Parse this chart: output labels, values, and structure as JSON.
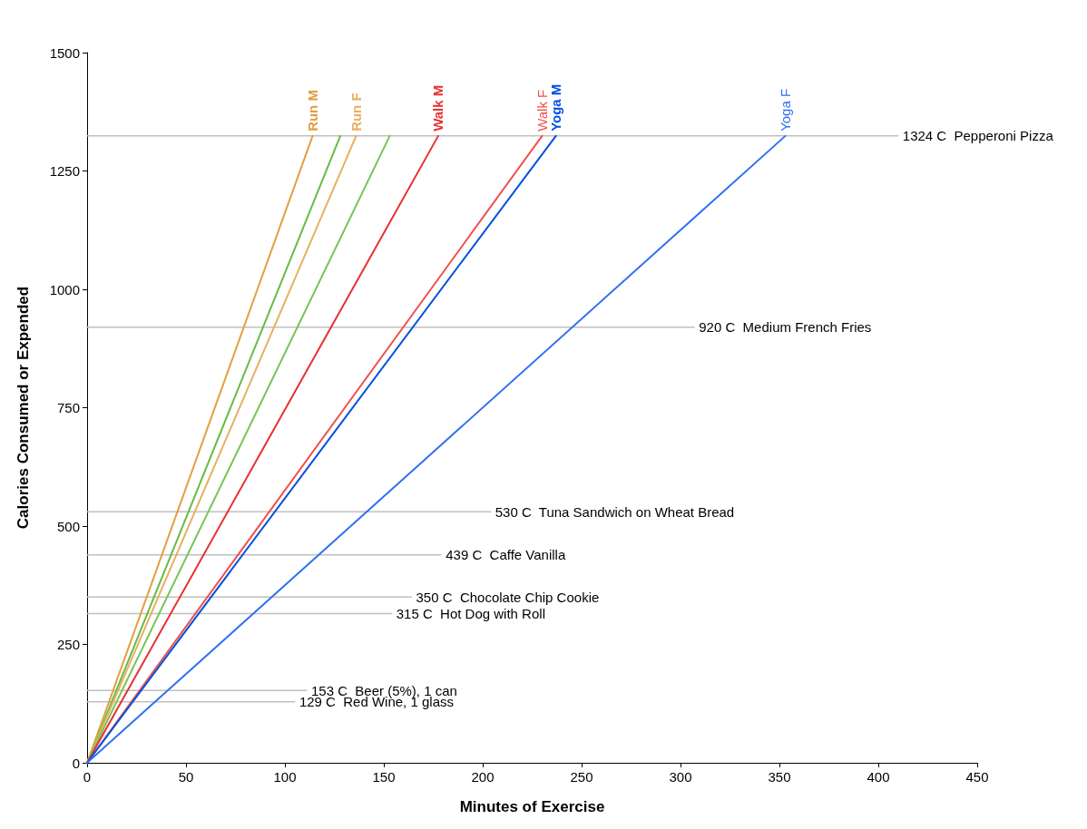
{
  "chart_data": {
    "type": "line",
    "xlabel": "Minutes of Exercise",
    "ylabel": "Calories Consumed or Expended",
    "xlim": [
      0,
      450
    ],
    "xticks": [
      0,
      50,
      100,
      150,
      200,
      250,
      300,
      350,
      400,
      450
    ],
    "ylim": [
      0,
      1500
    ],
    "yticks": [
      0,
      250,
      500,
      750,
      1000,
      1250,
      1500
    ],
    "grid": false,
    "legend": false,
    "marker": "none",
    "series": [
      {
        "name": "Run M",
        "color": "#e0a040",
        "x": [
          0,
          114
        ],
        "values": [
          0,
          1324
        ]
      },
      {
        "color": "#66bb44",
        "x": [
          0,
          128
        ],
        "values": [
          0,
          1324
        ]
      },
      {
        "name": "Run F",
        "color": "#e8b060",
        "x": [
          0,
          136
        ],
        "values": [
          0,
          1324
        ]
      },
      {
        "color": "#77c455",
        "x": [
          0,
          153
        ],
        "values": [
          0,
          1324
        ]
      },
      {
        "name": "Walk M",
        "color": "#e83030",
        "x": [
          0,
          177.5
        ],
        "values": [
          0,
          1324
        ]
      },
      {
        "name": "Walk F",
        "color": "#f05050",
        "x": [
          0,
          230
        ],
        "values": [
          0,
          1324
        ]
      },
      {
        "name": "Yoga M",
        "color": "#0050e0",
        "x": [
          0,
          237
        ],
        "values": [
          0,
          1324
        ]
      },
      {
        "name": "Yoga F",
        "color": "#3070f0",
        "x": [
          0,
          353
        ],
        "values": [
          0,
          1324
        ]
      },
      {
        "name": "Pepperoni Pizza",
        "color": "#c0c0c0",
        "x": [
          0,
          410
        ],
        "values": [
          1324,
          1324
        ],
        "value_labels": [
          null,
          "1324 C"
        ]
      },
      {
        "name": "Medium French Fries",
        "color": "#c0c0c0",
        "x": [
          0,
          307
        ],
        "values": [
          920,
          920
        ],
        "value_labels": [
          null,
          "920 C"
        ]
      },
      {
        "name": "Tuna Sandwich on Wheat Bread",
        "color": "#c0c0c0",
        "x": [
          0,
          204
        ],
        "values": [
          530,
          530
        ],
        "value_labels": [
          null,
          "530 C"
        ]
      },
      {
        "name": "Caffe Vanilla",
        "color": "#c0c0c0",
        "x": [
          0,
          179
        ],
        "values": [
          439,
          439
        ],
        "value_labels": [
          null,
          "439 C"
        ]
      },
      {
        "name": "Chocolate Chip Cookie",
        "color": "#c0c0c0",
        "x": [
          0,
          164
        ],
        "values": [
          350,
          350
        ],
        "value_labels": [
          null,
          "350 C"
        ]
      },
      {
        "name": "Hot Dog with Roll",
        "color": "#c0c0c0",
        "x": [
          0,
          154
        ],
        "values": [
          315,
          315
        ],
        "value_labels": [
          null,
          "315 C"
        ]
      },
      {
        "name": "Beer (5%), 1 can",
        "color": "#c0c0c0",
        "x": [
          0,
          111
        ],
        "values": [
          153,
          153
        ],
        "value_labels": [
          null,
          "153 C"
        ]
      },
      {
        "name": "Red Wine, 1 glass",
        "color": "#c0c0c0",
        "x": [
          0,
          105
        ],
        "values": [
          129,
          129
        ],
        "value_labels": [
          null,
          "129 C"
        ]
      }
    ]
  }
}
